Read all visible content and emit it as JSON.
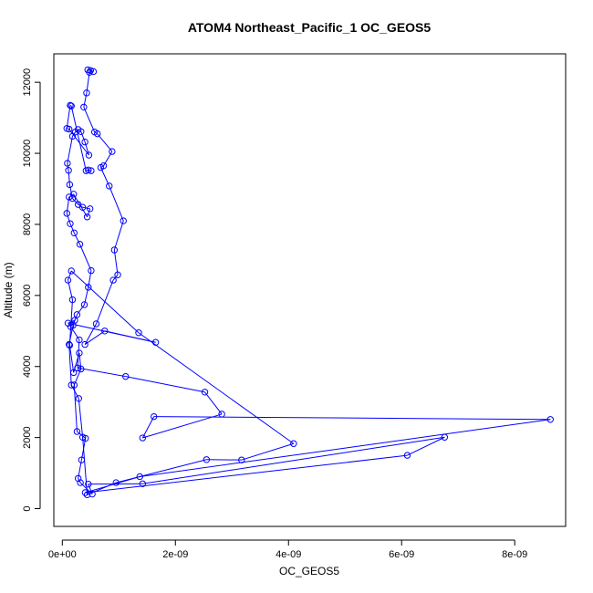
{
  "chart_data": {
    "type": "line",
    "title": "ATOM4 Northeast_Pacific_1 OC_GEOS5",
    "xlabel": "OC_GEOS5",
    "ylabel": "Altitude (m)",
    "xlim": [
      -1.5e-10,
      8.9e-09
    ],
    "ylim": [
      -500,
      12800
    ],
    "x_ticks": [
      0,
      2e-09,
      4e-09,
      6e-09,
      8e-09
    ],
    "x_tick_labels": [
      "0e+00",
      "2e-09",
      "4e-09",
      "6e-09",
      "8e-09"
    ],
    "y_ticks": [
      0,
      2000,
      4000,
      6000,
      8000,
      10000,
      12000
    ],
    "y_tick_labels": [
      "0",
      "2000",
      "4000",
      "6000",
      "8000",
      "10000",
      "12000"
    ],
    "grid": false,
    "legend": "none",
    "marker": "open-circle",
    "color": "#0000ff",
    "series": [
      {
        "x": [
          4.5e-10,
          5e-10,
          5.5e-10,
          4.8e-10,
          4.3e-10,
          3.8e-10,
          5.7e-10,
          6.2e-10,
          8.8e-10,
          7.3e-10,
          6.8e-10,
          8.3e-10,
          1.08e-09,
          9.2e-10,
          9.8e-10,
          9e-10,
          6e-10,
          4e-10,
          7.5e-10,
          1.65e-09,
          1e-10,
          2.2e-10,
          1.5e-10,
          3e-10,
          2.7e-10,
          1.12e-09,
          2.52e-09,
          2.82e-09,
          1.42e-09,
          1.62e-09,
          8.63e-09,
          1.37e-09,
          4.05e-10,
          6.1e-09,
          6.76e-09,
          1.42e-09,
          4.6e-10,
          5.3e-10,
          3.2e-10,
          2.8e-10,
          3.4e-10,
          4.1e-10,
          2.6e-10,
          2.1e-10,
          3.3e-10,
          3e-10,
          2e-10,
          1.3e-10,
          1.8e-10,
          1e-10,
          1.6e-10,
          1.35e-09,
          4.09e-09,
          3.17e-09,
          2.55e-09,
          9.5e-10,
          4.4e-10,
          3.6e-10,
          2.9e-10,
          1.6e-10,
          1.2e-10,
          1.9e-10,
          2.6e-10,
          3.9e-10,
          4.6e-10,
          5.1e-10,
          3.1e-10,
          2.1e-10,
          1.4e-10,
          8e-11,
          1.2e-10,
          2e-10,
          4.4e-10,
          4.9e-10,
          3.6e-10,
          2.8e-10,
          1.8e-10,
          1.3e-10,
          1.1e-10,
          9e-11,
          1.8e-10,
          2.3e-10,
          2.8e-10,
          3.3e-10,
          4e-10,
          4.7e-10,
          1.2e-10,
          8e-11,
          1.4e-10,
          1.6e-10,
          4.2e-10,
          4.6e-10,
          5.1e-10
        ],
        "y": [
          12350,
          12330,
          12300,
          12280,
          11700,
          11300,
          10600,
          10550,
          10050,
          9650,
          9600,
          9080,
          8100,
          7280,
          6580,
          6430,
          5200,
          4620,
          5000,
          4680,
          5220,
          5300,
          5120,
          4750,
          3960,
          3720,
          3280,
          2660,
          1990,
          2590,
          2510,
          900,
          450,
          1500,
          2010,
          700,
          690,
          410,
          730,
          850,
          1370,
          1980,
          2170,
          3480,
          3930,
          4380,
          3830,
          4600,
          5880,
          6430,
          6690,
          4950,
          1830,
          1370,
          1380,
          730,
          390,
          2010,
          3100,
          3480,
          4620,
          5160,
          5460,
          5740,
          6230,
          6700,
          7440,
          7760,
          8020,
          8310,
          8770,
          8850,
          8210,
          8440,
          8480,
          8560,
          8730,
          9120,
          9520,
          9720,
          10480,
          10600,
          10670,
          10610,
          10320,
          9950,
          10680,
          10700,
          11350,
          11330,
          9510,
          9530,
          9510
        ]
      }
    ]
  }
}
